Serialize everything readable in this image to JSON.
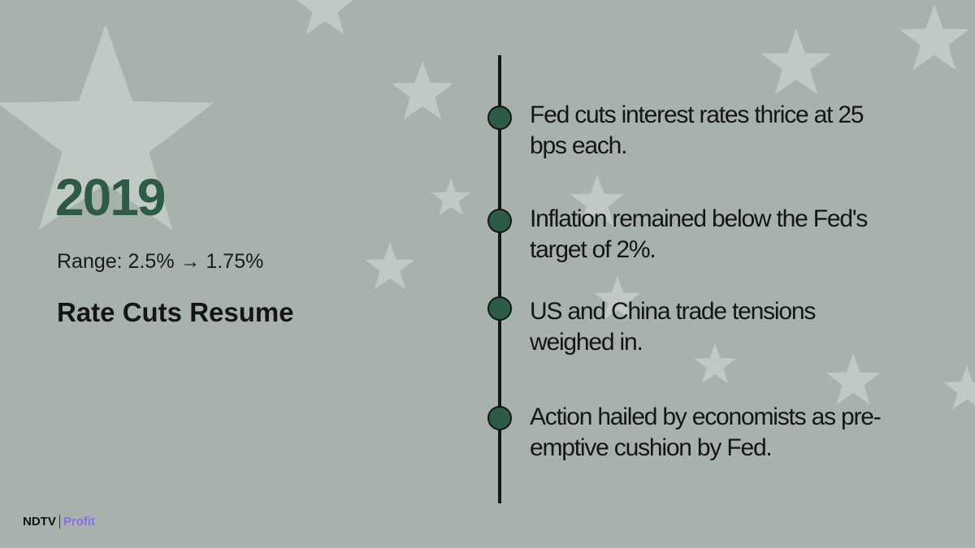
{
  "header": {
    "year": "2019",
    "range": "Range: 2.5% → 1.75%",
    "title": "Rate Cuts Resume"
  },
  "timeline": {
    "items": [
      "Fed cuts interest rates thrice at 25 bps each.",
      "Inflation remained below the Fed's target of 2%.",
      "US and China trade tensions weighed in.",
      "Action hailed by economists as pre-emptive cushion by Fed."
    ]
  },
  "logo": {
    "brand": "NDTV",
    "product": "Profit"
  }
}
